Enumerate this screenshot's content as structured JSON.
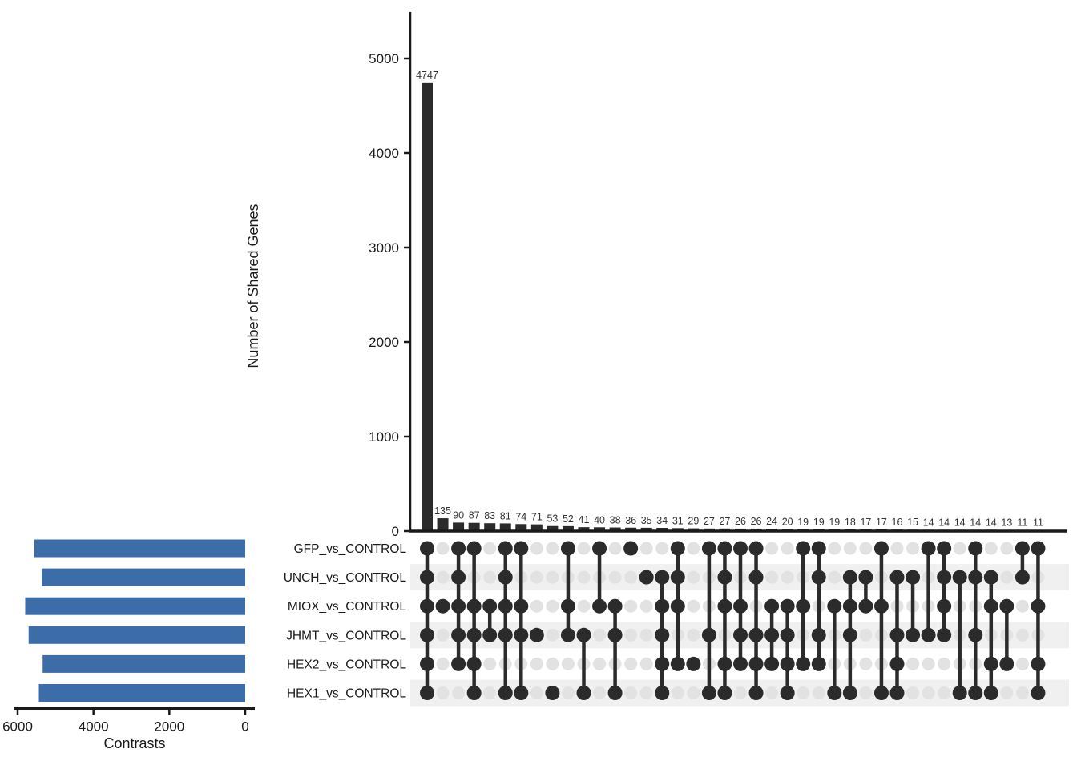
{
  "figure": {
    "background": "#ffffff",
    "colors": {
      "intersection_bar": "#2b2b2b",
      "set_size_bar": "#3c6da9",
      "member_dot": "#2b2b2b",
      "empty_dot": "#e2e2e2",
      "row_stripe": "#f0f0f0",
      "axis": "#1a1a1a",
      "value_label": "#333333"
    }
  },
  "chart_data": {
    "type": "bar",
    "subtype": "upset-plot",
    "title": "",
    "intersection_axis": {
      "label": "Number of Shared Genes",
      "ticks": [
        0,
        1000,
        2000,
        3000,
        4000,
        5000
      ],
      "range": [
        0,
        5500
      ],
      "grid": false
    },
    "set_size_axis": {
      "label": "Contrasts",
      "ticks": [
        6000,
        4000,
        2000,
        0
      ],
      "range": [
        0,
        6000
      ],
      "grid": false
    },
    "sets_order": [
      "GFP_vs_CONTROL",
      "UNCH_vs_CONTROL",
      "MIOX_vs_CONTROL",
      "JHMT_vs_CONTROL",
      "HEX2_vs_CONTROL",
      "HEX1_vs_CONTROL"
    ],
    "set_sizes_approx": [
      5560,
      5360,
      5800,
      5710,
      5340,
      5440
    ],
    "intersections": [
      {
        "size": 4747,
        "in": [
          1,
          1,
          1,
          1,
          1,
          1
        ]
      },
      {
        "size": 135,
        "in": [
          0,
          0,
          1,
          0,
          0,
          0
        ]
      },
      {
        "size": 90,
        "in": [
          1,
          1,
          1,
          1,
          1,
          0
        ]
      },
      {
        "size": 87,
        "in": [
          1,
          0,
          1,
          1,
          1,
          1
        ]
      },
      {
        "size": 83,
        "in": [
          0,
          0,
          1,
          1,
          0,
          0
        ]
      },
      {
        "size": 81,
        "in": [
          1,
          1,
          1,
          1,
          0,
          1
        ]
      },
      {
        "size": 74,
        "in": [
          1,
          0,
          1,
          1,
          0,
          1
        ]
      },
      {
        "size": 71,
        "in": [
          0,
          0,
          0,
          1,
          0,
          0
        ]
      },
      {
        "size": 53,
        "in": [
          0,
          0,
          0,
          0,
          0,
          1
        ]
      },
      {
        "size": 52,
        "in": [
          1,
          0,
          1,
          1,
          0,
          0
        ]
      },
      {
        "size": 41,
        "in": [
          0,
          0,
          0,
          1,
          0,
          1
        ]
      },
      {
        "size": 40,
        "in": [
          1,
          0,
          1,
          0,
          0,
          0
        ]
      },
      {
        "size": 38,
        "in": [
          0,
          0,
          1,
          1,
          0,
          1
        ]
      },
      {
        "size": 36,
        "in": [
          1,
          0,
          0,
          0,
          0,
          0
        ]
      },
      {
        "size": 35,
        "in": [
          0,
          1,
          0,
          0,
          0,
          0
        ]
      },
      {
        "size": 34,
        "in": [
          0,
          1,
          1,
          1,
          1,
          1
        ]
      },
      {
        "size": 31,
        "in": [
          1,
          1,
          1,
          0,
          1,
          0
        ]
      },
      {
        "size": 29,
        "in": [
          0,
          0,
          0,
          0,
          1,
          0
        ]
      },
      {
        "size": 27,
        "in": [
          1,
          0,
          0,
          1,
          0,
          1
        ]
      },
      {
        "size": 27,
        "in": [
          1,
          1,
          1,
          0,
          1,
          1
        ]
      },
      {
        "size": 26,
        "in": [
          1,
          0,
          1,
          1,
          1,
          0
        ]
      },
      {
        "size": 26,
        "in": [
          1,
          1,
          0,
          1,
          1,
          1
        ]
      },
      {
        "size": 24,
        "in": [
          0,
          0,
          1,
          1,
          1,
          0
        ]
      },
      {
        "size": 20,
        "in": [
          0,
          0,
          1,
          1,
          1,
          1
        ]
      },
      {
        "size": 19,
        "in": [
          1,
          0,
          1,
          0,
          1,
          0
        ]
      },
      {
        "size": 19,
        "in": [
          1,
          1,
          0,
          1,
          1,
          0
        ]
      },
      {
        "size": 19,
        "in": [
          0,
          0,
          1,
          0,
          0,
          1
        ]
      },
      {
        "size": 18,
        "in": [
          0,
          1,
          1,
          1,
          0,
          1
        ]
      },
      {
        "size": 17,
        "in": [
          0,
          1,
          1,
          0,
          0,
          0
        ]
      },
      {
        "size": 17,
        "in": [
          1,
          0,
          1,
          0,
          0,
          1
        ]
      },
      {
        "size": 16,
        "in": [
          0,
          1,
          0,
          1,
          1,
          1
        ]
      },
      {
        "size": 15,
        "in": [
          0,
          1,
          0,
          1,
          0,
          0
        ]
      },
      {
        "size": 14,
        "in": [
          1,
          0,
          0,
          1,
          0,
          0
        ]
      },
      {
        "size": 14,
        "in": [
          1,
          1,
          1,
          1,
          0,
          0
        ]
      },
      {
        "size": 14,
        "in": [
          0,
          1,
          0,
          0,
          0,
          1
        ]
      },
      {
        "size": 14,
        "in": [
          1,
          1,
          0,
          1,
          0,
          1
        ]
      },
      {
        "size": 14,
        "in": [
          0,
          1,
          1,
          0,
          1,
          1
        ]
      },
      {
        "size": 13,
        "in": [
          0,
          0,
          1,
          0,
          1,
          0
        ]
      },
      {
        "size": 11,
        "in": [
          1,
          1,
          0,
          0,
          0,
          0
        ]
      },
      {
        "size": 11,
        "in": [
          1,
          0,
          1,
          0,
          1,
          1
        ]
      }
    ]
  }
}
